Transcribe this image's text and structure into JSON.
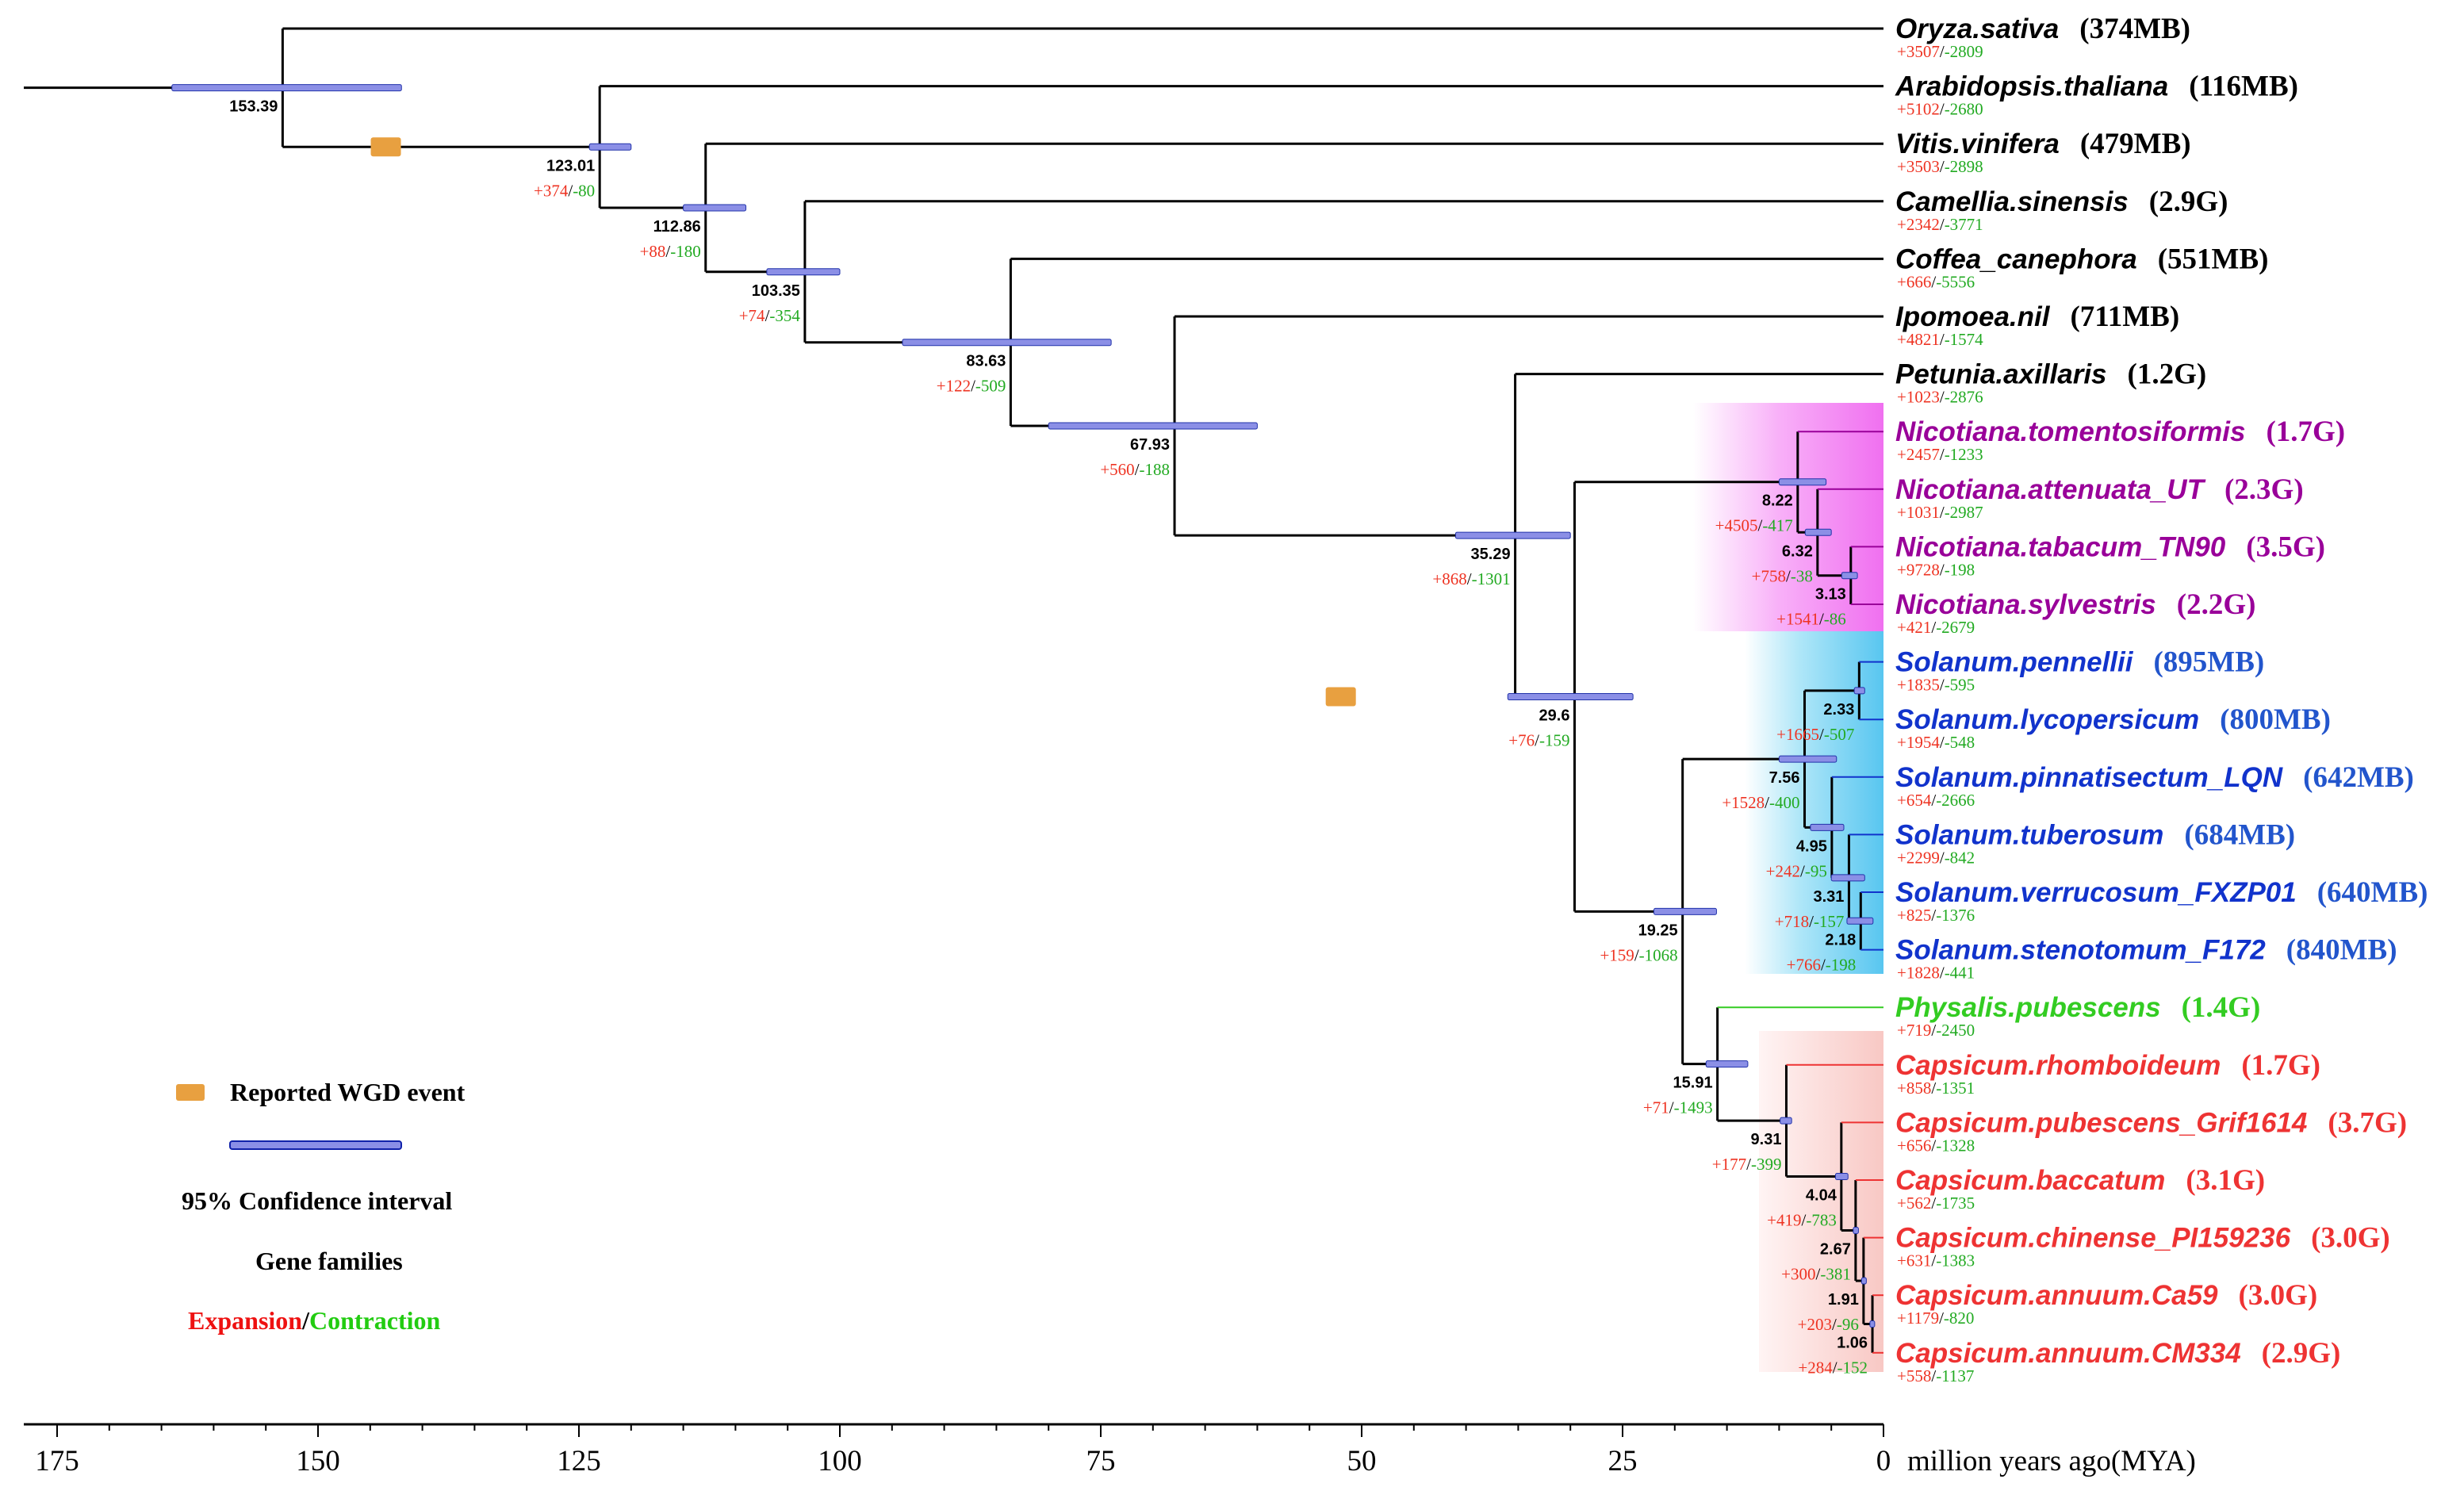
{
  "colors": {
    "black": "#000000",
    "nicotiana": "#990099",
    "solanum": "#1133cc",
    "physalis": "#33cc22",
    "capsicum": "#ee3333",
    "expansion": "#ee3322",
    "contraction": "#22aa22",
    "wgd": "#e8a040",
    "ci": "#8b8fe6"
  },
  "taxa": [
    {
      "name": "Oryza.sativa",
      "size": "(374MB)",
      "exp": "+3507",
      "con": "-2809",
      "group": "black"
    },
    {
      "name": "Arabidopsis.thaliana",
      "size": "(116MB)",
      "exp": "+5102",
      "con": "-2680",
      "group": "black"
    },
    {
      "name": "Vitis.vinifera",
      "size": "(479MB)",
      "exp": "+3503",
      "con": "-2898",
      "group": "black"
    },
    {
      "name": "Camellia.sinensis",
      "size": "(2.9G)",
      "exp": "+2342",
      "con": "-3771",
      "group": "black"
    },
    {
      "name": "Coffea_canephora",
      "size": "(551MB)",
      "exp": "+666",
      "con": "-5556",
      "group": "black"
    },
    {
      "name": "Ipomoea.nil",
      "size": "(711MB)",
      "exp": "+4821",
      "con": "-1574",
      "group": "black"
    },
    {
      "name": "Petunia.axillaris",
      "size": "(1.2G)",
      "exp": "+1023",
      "con": "-2876",
      "group": "black"
    },
    {
      "name": "Nicotiana.tomentosiformis",
      "size": "(1.7G)",
      "exp": "+2457",
      "con": "-1233",
      "group": "nicotiana"
    },
    {
      "name": "Nicotiana.attenuata_UT",
      "size": "(2.3G)",
      "exp": "+1031",
      "con": "-2987",
      "group": "nicotiana"
    },
    {
      "name": "Nicotiana.tabacum_TN90",
      "size": "(3.5G)",
      "exp": "+9728",
      "con": "-198",
      "group": "nicotiana"
    },
    {
      "name": "Nicotiana.sylvestris",
      "size": "(2.2G)",
      "exp": "+421",
      "con": "-2679",
      "group": "nicotiana"
    },
    {
      "name": "Solanum.pennellii",
      "size": "(895MB)",
      "exp": "+1835",
      "con": "-595",
      "group": "solanum"
    },
    {
      "name": "Solanum.lycopersicum",
      "size": "(800MB)",
      "exp": "+1954",
      "con": "-548",
      "group": "solanum"
    },
    {
      "name": "Solanum.pinnatisectum_LQN",
      "size": "(642MB)",
      "exp": "+654",
      "con": "-2666",
      "group": "solanum"
    },
    {
      "name": "Solanum.tuberosum",
      "size": "(684MB)",
      "exp": "+2299",
      "con": "-842",
      "group": "solanum"
    },
    {
      "name": "Solanum.verrucosum_FXZP01",
      "size": "(640MB)",
      "exp": "+825",
      "con": "-1376",
      "group": "solanum"
    },
    {
      "name": "Solanum.stenotomum_F172",
      "size": "(840MB)",
      "exp": "+1828",
      "con": "-441",
      "group": "solanum"
    },
    {
      "name": "Physalis.pubescens",
      "size": "(1.4G)",
      "exp": "+719",
      "con": "-2450",
      "group": "physalis"
    },
    {
      "name": "Capsicum.rhomboideum",
      "size": "(1.7G)",
      "exp": "+858",
      "con": "-1351",
      "group": "capsicum"
    },
    {
      "name": "Capsicum.pubescens_Grif1614",
      "size": "(3.7G)",
      "exp": "+656",
      "con": "-1328",
      "group": "capsicum"
    },
    {
      "name": "Capsicum.baccatum",
      "size": "(3.1G)",
      "exp": "+562",
      "con": "-1735",
      "group": "capsicum"
    },
    {
      "name": "Capsicum.chinense_PI159236",
      "size": "(3.0G)",
      "exp": "+631",
      "con": "-1383",
      "group": "capsicum"
    },
    {
      "name": "Capsicum.annuum.Ca59",
      "size": "(3.0G)",
      "exp": "+1179",
      "con": "-820",
      "group": "capsicum"
    },
    {
      "name": "Capsicum.annuum.CM334",
      "size": "(2.9G)",
      "exp": "+558",
      "con": "-1137",
      "group": "capsicum"
    }
  ],
  "nodes": [
    {
      "id": "n1",
      "age": 153.39,
      "label": "153.39",
      "children": [
        "t0",
        "n2"
      ],
      "ci": [
        164,
        142
      ],
      "exp": "",
      "con": ""
    },
    {
      "id": "n2",
      "age": 123.01,
      "label": "123.01",
      "children": [
        "t1",
        "n3"
      ],
      "ci": [
        124,
        120
      ],
      "exp": "+374",
      "con": "-80"
    },
    {
      "id": "n3",
      "age": 112.86,
      "label": "112.86",
      "children": [
        "t2",
        "n4"
      ],
      "ci": [
        115,
        109
      ],
      "exp": "+88",
      "con": "-180"
    },
    {
      "id": "n4",
      "age": 103.35,
      "label": "103.35",
      "children": [
        "t3",
        "n5"
      ],
      "ci": [
        107,
        100
      ],
      "exp": "+74",
      "con": "-354"
    },
    {
      "id": "n5",
      "age": 83.63,
      "label": "83.63",
      "children": [
        "t4",
        "n6"
      ],
      "ci": [
        94,
        74
      ],
      "exp": "+122",
      "con": "-509"
    },
    {
      "id": "n6",
      "age": 67.93,
      "label": "67.93",
      "children": [
        "t5",
        "n7"
      ],
      "ci": [
        80,
        60
      ],
      "exp": "+560",
      "con": "-188"
    },
    {
      "id": "n7",
      "age": 35.29,
      "label": "35.29",
      "children": [
        "t6",
        "n8"
      ],
      "ci": [
        41,
        30
      ],
      "exp": "+868",
      "con": "-1301"
    },
    {
      "id": "n8",
      "age": 29.6,
      "label": "29.6",
      "children": [
        "n9",
        "n10"
      ],
      "ci": [
        36,
        24
      ],
      "exp": "+76",
      "con": "-159"
    },
    {
      "id": "n9",
      "age": 8.22,
      "label": "8.22",
      "children": [
        "t7",
        "n11"
      ],
      "ci": [
        10,
        5.5
      ],
      "exp": "+4505",
      "con": "-417"
    },
    {
      "id": "n11",
      "age": 6.32,
      "label": "6.32",
      "children": [
        "t8",
        "n12"
      ],
      "ci": [
        7.5,
        5
      ],
      "exp": "+758",
      "con": "-38"
    },
    {
      "id": "n12",
      "age": 3.13,
      "label": "3.13",
      "children": [
        "t9",
        "t10"
      ],
      "ci": [
        4,
        2.5
      ],
      "exp": "+1541",
      "con": "-86"
    },
    {
      "id": "n10",
      "age": 19.25,
      "label": "19.25",
      "children": [
        "n13",
        "n14"
      ],
      "ci": [
        22,
        16
      ],
      "exp": "+159",
      "con": "-1068"
    },
    {
      "id": "n13",
      "age": 7.56,
      "label": "7.56",
      "children": [
        "n15",
        "n16"
      ],
      "ci": [
        10,
        4.5
      ],
      "exp": "+1528",
      "con": "-400"
    },
    {
      "id": "n15",
      "age": 2.33,
      "label": "2.33",
      "children": [
        "t11",
        "t12"
      ],
      "ci": [
        2.8,
        1.8
      ],
      "exp": "+1665",
      "con": "-507"
    },
    {
      "id": "n16",
      "age": 4.95,
      "label": "4.95",
      "children": [
        "t13",
        "n17"
      ],
      "ci": [
        7,
        3.8
      ],
      "exp": "+242",
      "con": "-95"
    },
    {
      "id": "n17",
      "age": 3.31,
      "label": "3.31",
      "children": [
        "t14",
        "n18"
      ],
      "ci": [
        5,
        1.8
      ],
      "exp": "+718",
      "con": "-157"
    },
    {
      "id": "n18",
      "age": 2.18,
      "label": "2.18",
      "children": [
        "t15",
        "t16"
      ],
      "ci": [
        3.5,
        1.0
      ],
      "exp": "+766",
      "con": "-198"
    },
    {
      "id": "n14",
      "age": 15.91,
      "label": "15.91",
      "children": [
        "t17",
        "n19"
      ],
      "ci": [
        17,
        13
      ],
      "exp": "+71",
      "con": "-1493"
    },
    {
      "id": "n19",
      "age": 9.31,
      "label": "9.31",
      "children": [
        "t18",
        "n20"
      ],
      "ci": [
        9.9,
        8.8
      ],
      "exp": "+177",
      "con": "-399"
    },
    {
      "id": "n20",
      "age": 4.04,
      "label": "4.04",
      "children": [
        "t19",
        "n21"
      ],
      "ci": [
        4.6,
        3.4
      ],
      "exp": "+419",
      "con": "-783"
    },
    {
      "id": "n21",
      "age": 2.67,
      "label": "2.67",
      "children": [
        "t20",
        "n22"
      ],
      "ci": [
        2.9,
        2.4
      ],
      "exp": "+300",
      "con": "-381"
    },
    {
      "id": "n22",
      "age": 1.91,
      "label": "1.91",
      "children": [
        "t21",
        "n23"
      ],
      "ci": [
        2.1,
        1.7
      ],
      "exp": "+203",
      "con": "-96"
    },
    {
      "id": "n23",
      "age": 1.06,
      "label": "1.06",
      "children": [
        "t22",
        "t23"
      ],
      "ci": [
        1.3,
        0.85
      ],
      "exp": "+284",
      "con": "-152"
    }
  ],
  "wgd_events": [
    {
      "node": "n2",
      "age": 143.5
    },
    {
      "node": "n8",
      "age": 52
    }
  ],
  "axis": {
    "ticks": [
      "175",
      "150",
      "125",
      "100",
      "75",
      "50",
      "25",
      "0"
    ],
    "tick_values": [
      175,
      150,
      125,
      100,
      75,
      50,
      25,
      0
    ],
    "label": "million years ago(MYA)"
  },
  "legend": {
    "wgd": "Reported WGD event",
    "ci": "95% Confidence interval",
    "gene_families": "Gene families",
    "expansion": "Expansion",
    "slash": "/",
    "contraction": "Contraction"
  }
}
